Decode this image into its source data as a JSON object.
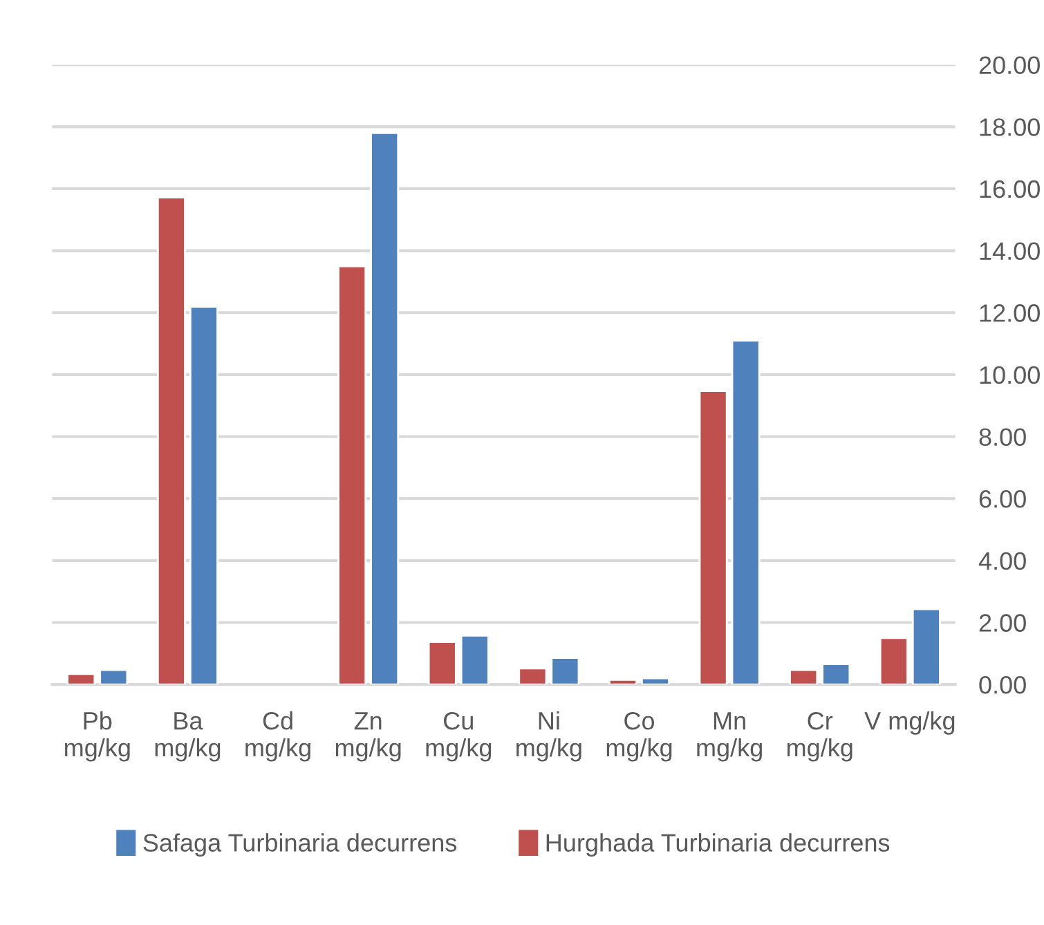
{
  "chart_data": {
    "type": "bar",
    "categories": [
      "Pb\nmg/kg",
      "Ba\nmg/kg",
      "Cd\nmg/kg",
      "Zn\nmg/kg",
      "Cu\nmg/kg",
      "Ni\nmg/kg",
      "Co\nmg/kg",
      "Mn\nmg/kg",
      "Cr\nmg/kg",
      "V mg/kg"
    ],
    "series": [
      {
        "name": "Hurghada Turbinaria decurrens",
        "color": "#c0504d",
        "values": [
          0.34,
          15.72,
          null,
          13.5,
          1.37,
          0.52,
          0.15,
          9.47,
          0.47,
          1.5
        ]
      },
      {
        "name": "Safaga Turbinaria decurrens",
        "color": "#4f81bd",
        "values": [
          0.47,
          12.19,
          null,
          17.8,
          1.58,
          0.86,
          0.2,
          11.1,
          0.66,
          2.43
        ]
      }
    ],
    "ylim": [
      0,
      20
    ],
    "yticks": [
      {
        "value": 0,
        "label": "0.00"
      },
      {
        "value": 2,
        "label": "2.00"
      },
      {
        "value": 4,
        "label": "4.00"
      },
      {
        "value": 6,
        "label": "6.00"
      },
      {
        "value": 8,
        "label": "8.00"
      },
      {
        "value": 10,
        "label": "10.00"
      },
      {
        "value": 12,
        "label": "12.00"
      },
      {
        "value": 14,
        "label": "14.00"
      },
      {
        "value": 16,
        "label": "16.00"
      },
      {
        "value": 18,
        "label": "18.00"
      },
      {
        "value": 20,
        "label": "20.00"
      }
    ],
    "grid": "y",
    "legend": "bottom"
  }
}
